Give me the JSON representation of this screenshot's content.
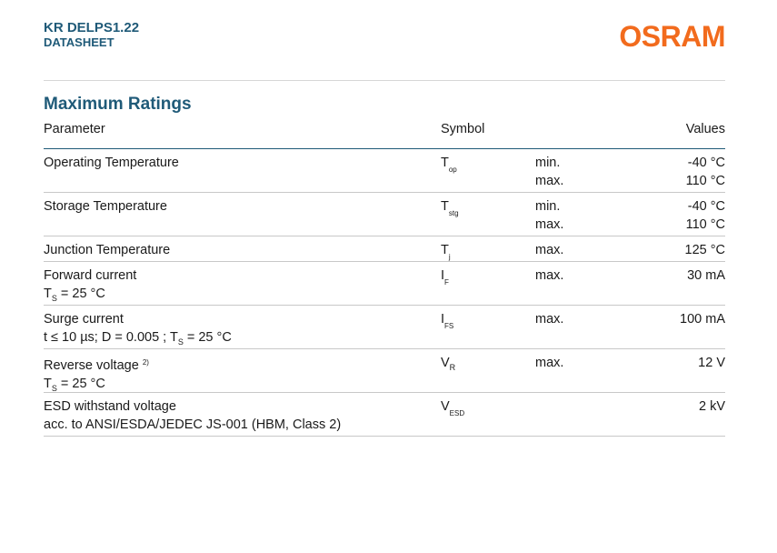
{
  "header": {
    "product": "KR DELPS1.22",
    "doc_type": "DATASHEET",
    "brand": "OSRAM"
  },
  "section": {
    "title": "Maximum Ratings"
  },
  "table": {
    "headers": {
      "parameter": "Parameter",
      "symbol": "Symbol",
      "values": "Values"
    },
    "rows": [
      {
        "param": "Operating Temperature",
        "sym": "T",
        "sym_sub": "op",
        "mm": [
          "min.",
          "max."
        ],
        "vals": [
          "-40 °C",
          "110 °C"
        ]
      },
      {
        "param": "Storage Temperature",
        "sym": "T",
        "sym_sub": "stg",
        "mm": [
          "min.",
          "max."
        ],
        "vals": [
          "-40 °C",
          "110 °C"
        ]
      },
      {
        "param": "Junction Temperature",
        "sym": "T",
        "sym_sub": "j",
        "mm": [
          "max."
        ],
        "vals": [
          "125 °C"
        ]
      },
      {
        "param": "Forward current",
        "cond_pre": "T",
        "cond_sub": "S",
        "cond_post": " = 25 °C",
        "sym": "I",
        "sym_sub": "F",
        "mm": [
          "max."
        ],
        "vals": [
          "30 mA"
        ]
      },
      {
        "param": "Surge current",
        "cond_pre": "t ≤ 10 µs; D = 0.005 ; T",
        "cond_sub": "S",
        "cond_post": " = 25 °C",
        "sym": "I",
        "sym_sub": "FS",
        "mm": [
          "max."
        ],
        "vals": [
          "100 mA"
        ]
      },
      {
        "param": "Reverse voltage",
        "param_sup": "2)",
        "cond_pre": "T",
        "cond_sub": "S",
        "cond_post": " = 25 °C",
        "sym": "V",
        "sym_sub": "R",
        "mm": [
          "max."
        ],
        "vals": [
          "12 V"
        ]
      },
      {
        "param": "ESD withstand voltage",
        "cond_pre": "acc. to ANSI/ESDA/JEDEC JS-001 (HBM, Class 2)",
        "cond_sub": "",
        "cond_post": "",
        "sym": "V",
        "sym_sub": "ESD",
        "mm": [],
        "vals": [
          "2 kV"
        ]
      }
    ]
  }
}
